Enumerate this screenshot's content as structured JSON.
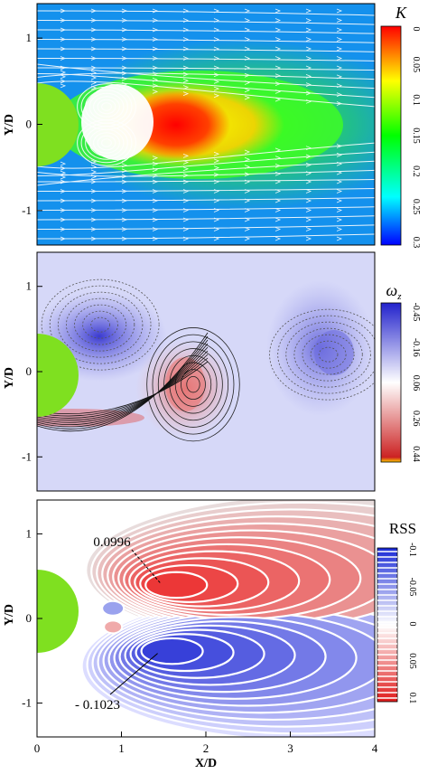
{
  "chart_data": [
    {
      "type": "heatmap",
      "quantity": "turbulent kinetic energy",
      "colorbar_label": "K",
      "colorbar_ticks": [
        "0",
        "0.05",
        "0.1",
        "0.15",
        "0.2",
        "0.25",
        "0.3"
      ],
      "colorbar_range": [
        0,
        0.3
      ],
      "colormap": [
        "#0000ff",
        "#00ffff",
        "#00ff00",
        "#ffff00",
        "#ff0000"
      ],
      "ylabel": "Y/D",
      "xlim": [
        0,
        4
      ],
      "ylim": [
        -1.4,
        1.4
      ],
      "y_ticks": [
        1,
        0,
        -1
      ],
      "y_tick_labels": [
        "1",
        "0",
        "-1"
      ],
      "overlay": "streamlines",
      "cylinder_color": "#7fe020",
      "max_region": {
        "x": 1.55,
        "y": 0.0
      }
    },
    {
      "type": "heatmap",
      "quantity": "vorticity",
      "colorbar_label": "ω",
      "colorbar_subscript": "z",
      "colorbar_ticks": [
        "-0.45",
        "-0.16",
        "0.06",
        "0.26",
        "0.44"
      ],
      "colorbar_range": [
        -0.45,
        0.44
      ],
      "colormap": [
        "#2222cc",
        "#ffffff",
        "#cc2222"
      ],
      "ylabel": "Y/D",
      "xlim": [
        0,
        4
      ],
      "ylim": [
        -1.4,
        1.4
      ],
      "y_ticks": [
        1,
        0,
        -1
      ],
      "y_tick_labels": [
        "1",
        "0",
        "-1"
      ],
      "overlay": "contour lines",
      "cylinder_color": "#7fe020",
      "negative_centers": [
        {
          "x": 0.75,
          "y": 0.55
        },
        {
          "x": 3.45,
          "y": 0.2
        }
      ],
      "positive_centers": [
        {
          "x": 1.85,
          "y": -0.15
        }
      ]
    },
    {
      "type": "heatmap",
      "quantity": "Reynolds shear stress",
      "colorbar_label": "RSS",
      "colorbar_ticks": [
        "-0.1",
        "-0.05",
        "0",
        "0.05",
        "0.1"
      ],
      "colorbar_range": [
        -0.1,
        0.1
      ],
      "colormap": [
        "#1a2ad6",
        "#ffffff",
        "#e01a1a"
      ],
      "xlabel": "X/D",
      "ylabel": "Y/D",
      "xlim": [
        0,
        4
      ],
      "ylim": [
        -1.4,
        1.4
      ],
      "x_ticks": [
        0,
        1,
        2,
        3,
        4
      ],
      "x_tick_labels": [
        "0",
        "1",
        "2",
        "3",
        "4"
      ],
      "y_ticks": [
        1,
        0,
        -1
      ],
      "y_tick_labels": [
        "1",
        "0",
        "-1"
      ],
      "cylinder_color": "#7fe020",
      "annotations": [
        {
          "text": "0.0996",
          "x": 1.5,
          "y": 0.38,
          "sign": "positive"
        },
        {
          "text": "- 0.1023",
          "x": 1.45,
          "y": -0.37,
          "sign": "negative"
        }
      ]
    }
  ]
}
